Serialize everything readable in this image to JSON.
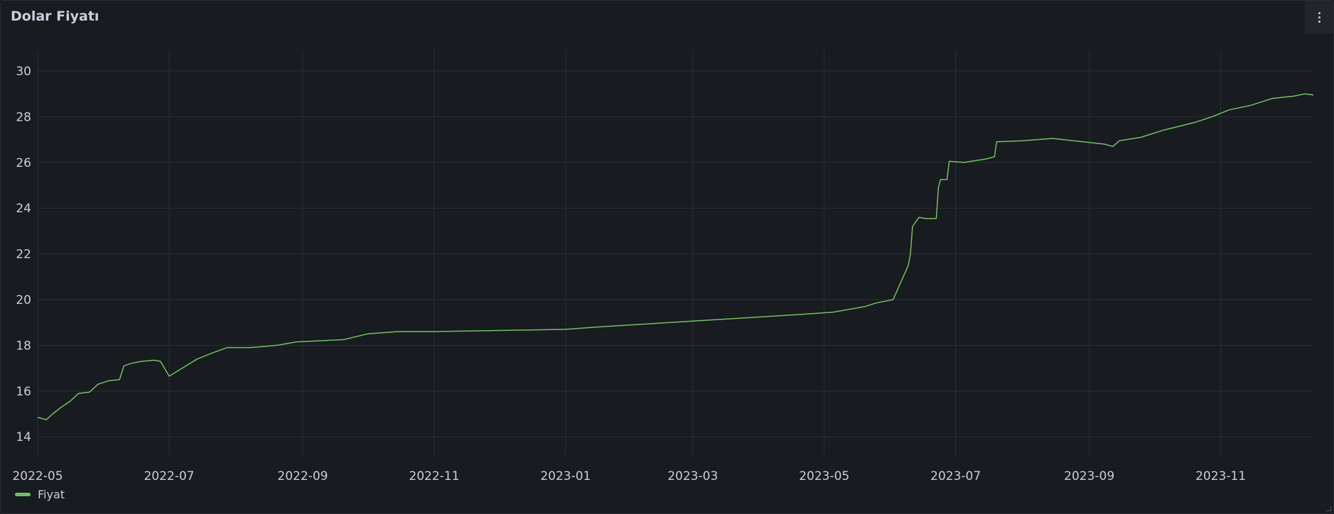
{
  "panel": {
    "title": "Dolar Fiyatı",
    "menu_icon": "kebab-vertical-icon"
  },
  "colors": {
    "background": "#181b1f",
    "grid": "#2c2f35",
    "series": "#73bf69",
    "text": "#ccccdc"
  },
  "chart_data": {
    "type": "line",
    "title": "Dolar Fiyatı",
    "xlabel": "",
    "ylabel": "",
    "x_ticks": [
      "2022-05",
      "2022-07",
      "2022-09",
      "2022-11",
      "2023-01",
      "2023-03",
      "2023-05",
      "2023-07",
      "2023-09",
      "2023-11"
    ],
    "y_ticks": [
      14,
      16,
      18,
      20,
      22,
      24,
      26,
      28,
      30
    ],
    "xlim": [
      "2022-05-01",
      "2023-12-14"
    ],
    "ylim": [
      13.2,
      30.9
    ],
    "grid": true,
    "legend_position": "bottom-left",
    "series": [
      {
        "name": "Fiyat",
        "color": "#73bf69",
        "points": [
          [
            "2022-05-01",
            14.85
          ],
          [
            "2022-05-05",
            14.75
          ],
          [
            "2022-05-08",
            15.0
          ],
          [
            "2022-05-12",
            15.3
          ],
          [
            "2022-05-16",
            15.55
          ],
          [
            "2022-05-20",
            15.9
          ],
          [
            "2022-05-25",
            15.95
          ],
          [
            "2022-05-29",
            16.3
          ],
          [
            "2022-06-03",
            16.45
          ],
          [
            "2022-06-08",
            16.5
          ],
          [
            "2022-06-10",
            17.1
          ],
          [
            "2022-06-13",
            17.2
          ],
          [
            "2022-06-18",
            17.3
          ],
          [
            "2022-06-24",
            17.35
          ],
          [
            "2022-06-27",
            17.3
          ],
          [
            "2022-07-01",
            16.65
          ],
          [
            "2022-07-14",
            17.4
          ],
          [
            "2022-07-22",
            17.7
          ],
          [
            "2022-07-28",
            17.9
          ],
          [
            "2022-08-08",
            17.9
          ],
          [
            "2022-08-20",
            18.0
          ],
          [
            "2022-08-29",
            18.15
          ],
          [
            "2022-09-20",
            18.25
          ],
          [
            "2022-10-01",
            18.5
          ],
          [
            "2022-10-15",
            18.6
          ],
          [
            "2022-11-01",
            18.6
          ],
          [
            "2022-12-01",
            18.65
          ],
          [
            "2023-01-01",
            18.7
          ],
          [
            "2023-01-15",
            18.8
          ],
          [
            "2023-04-20",
            19.35
          ],
          [
            "2023-05-05",
            19.45
          ],
          [
            "2023-05-20",
            19.7
          ],
          [
            "2023-05-25",
            19.85
          ],
          [
            "2023-06-02",
            20.0
          ],
          [
            "2023-06-09",
            21.5
          ],
          [
            "2023-06-10",
            22.0
          ],
          [
            "2023-06-11",
            23.2
          ],
          [
            "2023-06-14",
            23.6
          ],
          [
            "2023-06-17",
            23.55
          ],
          [
            "2023-06-22",
            23.55
          ],
          [
            "2023-06-23",
            24.9
          ],
          [
            "2023-06-24",
            25.25
          ],
          [
            "2023-06-27",
            25.25
          ],
          [
            "2023-06-28",
            26.05
          ],
          [
            "2023-07-05",
            26.0
          ],
          [
            "2023-07-15",
            26.15
          ],
          [
            "2023-07-19",
            26.25
          ],
          [
            "2023-07-20",
            26.9
          ],
          [
            "2023-08-01",
            26.95
          ],
          [
            "2023-08-15",
            27.05
          ],
          [
            "2023-09-08",
            26.8
          ],
          [
            "2023-09-12",
            26.7
          ],
          [
            "2023-09-15",
            26.95
          ],
          [
            "2023-09-25",
            27.1
          ],
          [
            "2023-10-05",
            27.4
          ],
          [
            "2023-10-20",
            27.75
          ],
          [
            "2023-10-28",
            28.0
          ],
          [
            "2023-11-05",
            28.3
          ],
          [
            "2023-11-15",
            28.5
          ],
          [
            "2023-11-25",
            28.8
          ],
          [
            "2023-12-05",
            28.9
          ],
          [
            "2023-12-10",
            29.0
          ],
          [
            "2023-12-14",
            28.95
          ]
        ]
      }
    ]
  }
}
